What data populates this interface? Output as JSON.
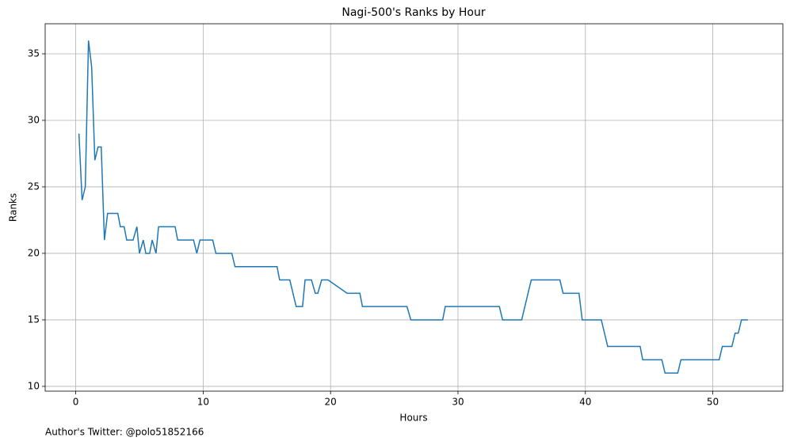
{
  "chart_data": {
    "type": "line",
    "title": "Nagi-500's Ranks by Hour",
    "x_label": "Hours",
    "y_label": "Ranks",
    "footer": "Author's Twitter: @polo51852166",
    "x": [
      0.25,
      0.5,
      0.75,
      1.0,
      1.25,
      1.5,
      1.75,
      2.0,
      2.25,
      2.5,
      3.3,
      3.5,
      3.8,
      4.0,
      4.5,
      4.8,
      5.0,
      5.3,
      5.5,
      5.8,
      6.0,
      6.3,
      6.5,
      7.8,
      8.0,
      9.25,
      9.5,
      9.75,
      10.75,
      11.0,
      12.25,
      12.5,
      15.8,
      16.0,
      16.8,
      17.3,
      17.8,
      18.0,
      18.5,
      18.8,
      19.0,
      19.3,
      19.8,
      21.3,
      22.3,
      22.5,
      26.0,
      26.3,
      28.8,
      29.0,
      33.25,
      33.5,
      35.0,
      35.75,
      38.0,
      38.25,
      39.5,
      39.75,
      41.25,
      41.75,
      44.3,
      44.5,
      46.0,
      46.25,
      47.25,
      47.5,
      50.5,
      50.75,
      51.5,
      51.75,
      52.0,
      52.25,
      52.75
    ],
    "series": [
      {
        "name": "Ranks",
        "color": "#1f77b4",
        "values": [
          29,
          24,
          25,
          36,
          34,
          27,
          28,
          28,
          21,
          23,
          23,
          22,
          22,
          21,
          21,
          22,
          20,
          21,
          20,
          20,
          21,
          20,
          22,
          22,
          21,
          21,
          20,
          21,
          21,
          20,
          20,
          19,
          19,
          18,
          18,
          16,
          16,
          18,
          18,
          17,
          17,
          18,
          18,
          17,
          17,
          16,
          16,
          15,
          15,
          16,
          16,
          15,
          15,
          18,
          18,
          17,
          17,
          15,
          15,
          13,
          13,
          12,
          12,
          11,
          11,
          12,
          12,
          13,
          13,
          14,
          14,
          15,
          15
        ]
      }
    ],
    "xlim": [
      -2.4,
      55.5
    ],
    "ylim": [
      9.64,
      37.26
    ],
    "xticks": [
      0,
      10,
      20,
      30,
      40,
      50
    ],
    "yticks": [
      10,
      15,
      20,
      25,
      30,
      35
    ],
    "grid": true
  }
}
